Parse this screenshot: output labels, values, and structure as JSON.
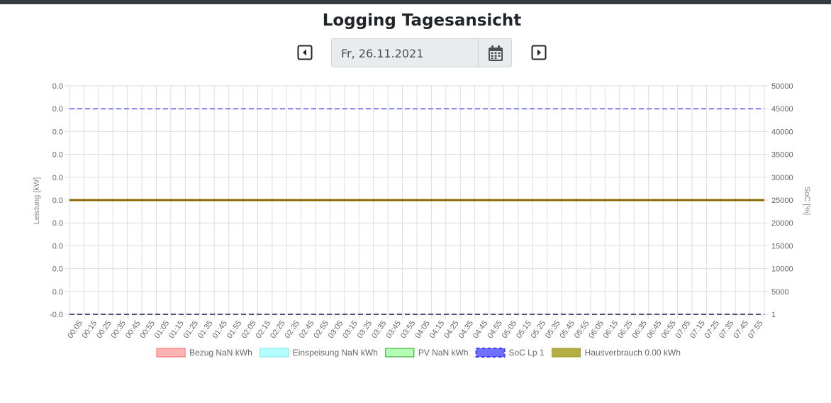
{
  "header": {
    "title": "Logging Tagesansicht",
    "date_value": "Fr, 26.11.2021",
    "prev_icon": "caret-left-square-icon",
    "next_icon": "caret-right-square-icon",
    "calendar_icon": "calendar-icon"
  },
  "chart_data": {
    "type": "line",
    "y_left_label": "Leistung [kW]",
    "y_right_label": "SoC [%]",
    "y_left_ticks": [
      "0.0",
      "0.0",
      "0.0",
      "0.0",
      "0.0",
      "0.0",
      "0.0",
      "0.0",
      "0.0",
      "0.0",
      "-0.0"
    ],
    "y_right_ticks": [
      "50000",
      "45000",
      "40000",
      "35000",
      "30000",
      "25000",
      "20000",
      "15000",
      "10000",
      "5000",
      "1"
    ],
    "y_right_range": [
      0,
      50000
    ],
    "x_labels": [
      "00:05",
      "00:15",
      "00:25",
      "00:35",
      "00:45",
      "00:55",
      "01:05",
      "01:15",
      "01:25",
      "01:35",
      "01:45",
      "01:55",
      "02:05",
      "02:15",
      "02:25",
      "02:35",
      "02:45",
      "02:55",
      "03:05",
      "03:15",
      "03:25",
      "03:35",
      "03:45",
      "03:55",
      "04:05",
      "04:15",
      "04:25",
      "04:35",
      "04:45",
      "04:55",
      "05:05",
      "05:15",
      "05:25",
      "05:35",
      "05:45",
      "05:55",
      "06:05",
      "06:15",
      "06:25",
      "06:35",
      "06:45",
      "06:55",
      "07:05",
      "07:15",
      "07:25",
      "07:35",
      "07:45",
      "07:55"
    ],
    "grid": true,
    "legend_position": "bottom",
    "series": [
      {
        "name": "Bezug NaN kWh",
        "color": "#ff6b6b",
        "fill": "#ffb3b3",
        "style": "solid"
      },
      {
        "name": "Einspeisung NaN kWh",
        "color": "#7ee6e6",
        "fill": "#b3ffff",
        "style": "solid"
      },
      {
        "name": "PV NaN kWh",
        "color": "#2ca02c",
        "fill": "#b3ffb3",
        "style": "solid"
      },
      {
        "name": "SoC Lp 1",
        "color": "#3d3dff",
        "fill": "#7070ff",
        "style": "dashed"
      },
      {
        "name": "Hausverbrauch 0.00 kWh",
        "color": "#a09a25",
        "fill": "#b5ae45",
        "style": "solid"
      }
    ],
    "lines": [
      {
        "series": "SoC Lp 1",
        "axis": "right",
        "value": 45000,
        "color": "#7b7bf0",
        "style": "dashed"
      },
      {
        "series": "Hausverbrauch 0.00 kWh",
        "axis": "right",
        "value": 25000,
        "color": "#8a6a00",
        "style": "solid"
      },
      {
        "series": "baseline",
        "axis": "right",
        "value": 1,
        "color": "#50507a",
        "style": "dashed"
      }
    ]
  }
}
